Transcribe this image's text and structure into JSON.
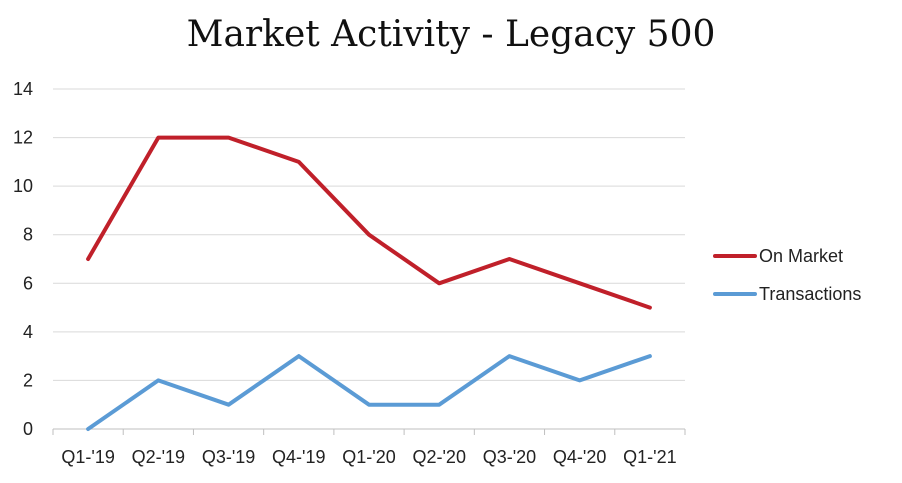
{
  "chart_data": {
    "type": "line",
    "title": "Market Activity - Legacy 500",
    "xlabel": "",
    "ylabel": "",
    "categories": [
      "Q1-'19",
      "Q2-'19",
      "Q3-'19",
      "Q4-'19",
      "Q1-'20",
      "Q2-'20",
      "Q3-'20",
      "Q4-'20",
      "Q1-'21"
    ],
    "ylim": [
      0,
      14
    ],
    "yticks": [
      0,
      2,
      4,
      6,
      8,
      10,
      12,
      14
    ],
    "grid": true,
    "legend_position": "right",
    "series": [
      {
        "name": "On Market",
        "color": "#C0202A",
        "values": [
          7,
          12,
          12,
          11,
          8,
          6,
          7,
          6,
          5
        ]
      },
      {
        "name": "Transactions",
        "color": "#5B9BD5",
        "values": [
          0,
          2,
          1,
          3,
          1,
          1,
          3,
          2,
          3
        ]
      }
    ]
  }
}
